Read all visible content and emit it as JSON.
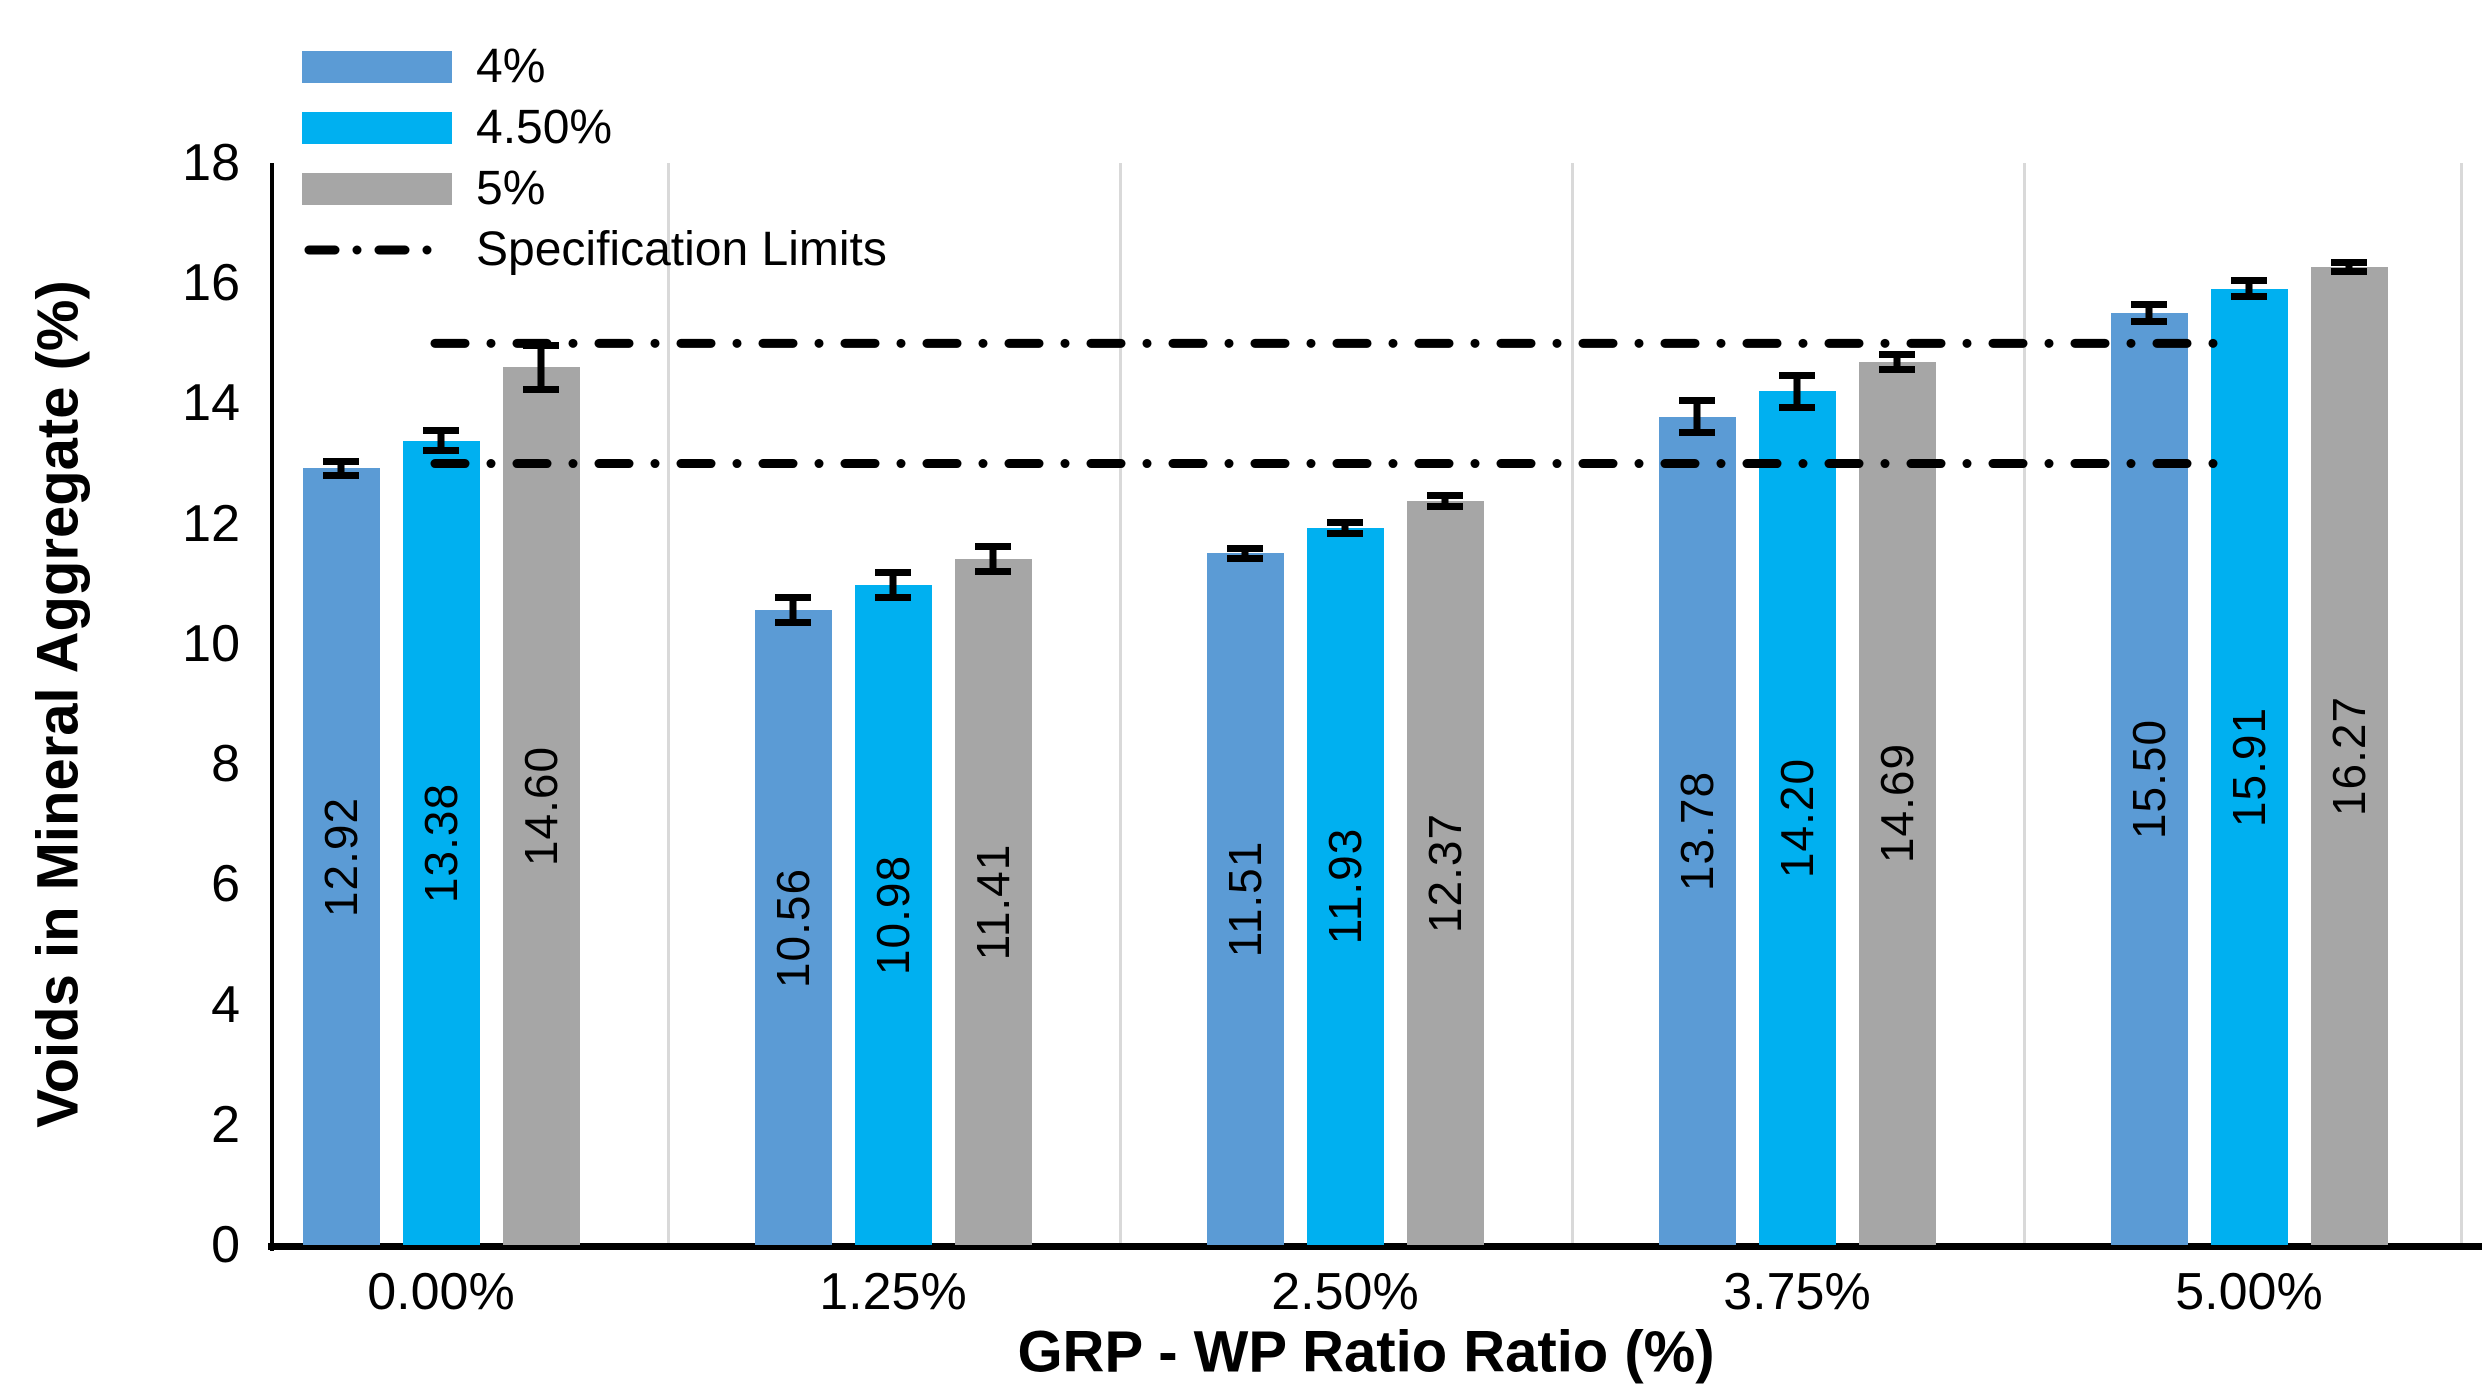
{
  "chart_data": {
    "type": "bar",
    "title": "",
    "xlabel": "GRP - WP Ratio Ratio (%)",
    "ylabel": "Voids in Mineral Aggregate (%)",
    "categories": [
      "0.00%",
      "1.25%",
      "2.50%",
      "3.75%",
      "5.00%"
    ],
    "series": [
      {
        "name": "4%",
        "color": "#5B9BD5",
        "values": [
          12.92,
          10.56,
          11.51,
          13.78,
          15.5
        ],
        "labels": [
          "12.92",
          "10.56",
          "11.51",
          "13.78",
          "15.50"
        ],
        "errors": [
          0.13,
          0.22,
          0.09,
          0.28,
          0.15
        ]
      },
      {
        "name": "4.50%",
        "color": "#00B0F0",
        "values": [
          13.38,
          10.98,
          11.93,
          14.2,
          15.91
        ],
        "labels": [
          "13.38",
          "10.98",
          "11.93",
          "14.20",
          "15.91"
        ],
        "errors": [
          0.17,
          0.22,
          0.1,
          0.28,
          0.14
        ]
      },
      {
        "name": "5%",
        "color": "#A6A6A6",
        "values": [
          14.6,
          11.41,
          12.37,
          14.69,
          16.27
        ],
        "labels": [
          "14.60",
          "11.41",
          "12.37",
          "14.69",
          "16.27"
        ],
        "errors": [
          0.38,
          0.22,
          0.1,
          0.14,
          0.09
        ]
      }
    ],
    "spec_limits": {
      "label": "Specification Limits",
      "values": [
        15,
        13
      ],
      "color": "#000000",
      "style": "dash-dot"
    },
    "ylim": [
      0,
      18
    ],
    "y_ticks": [
      0,
      2,
      4,
      6,
      8,
      10,
      12,
      14,
      16,
      18
    ],
    "y_tick_labels": [
      "0",
      "2",
      "4",
      "6",
      "8",
      "10",
      "12",
      "14",
      "16",
      "18"
    ],
    "legend_position": "top-left",
    "grid": {
      "vertical_separators": true,
      "color": "#D9D9D9"
    },
    "bar_label_rotation": -90,
    "error_bars": true
  }
}
